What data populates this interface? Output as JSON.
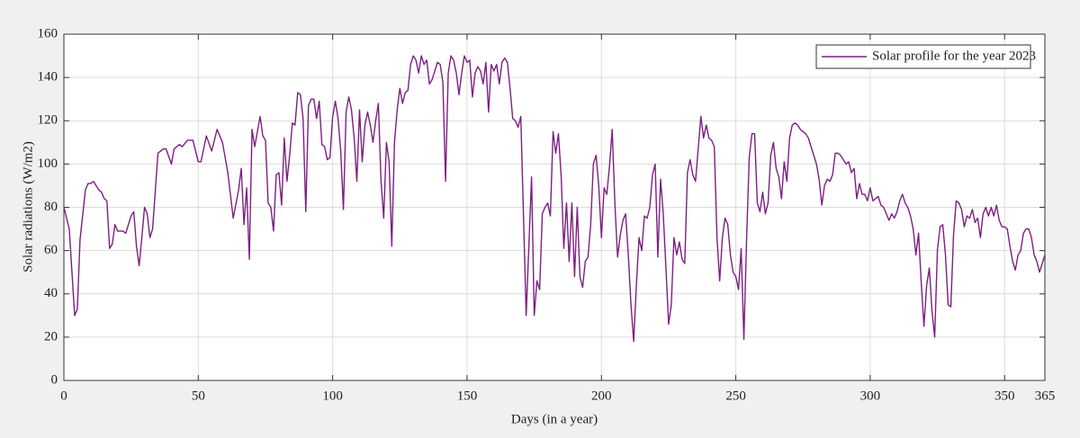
{
  "chart_data": {
    "type": "line",
    "xlabel": "Days (in a year)",
    "ylabel": "Solar radiations (W/m2)",
    "x": [
      0,
      2,
      4,
      5,
      6,
      8,
      9,
      10,
      11,
      13,
      14,
      15,
      16,
      17,
      18,
      19,
      20,
      22,
      23,
      25,
      26,
      27,
      28,
      29,
      30,
      31,
      32,
      33,
      35,
      37,
      38,
      40,
      41,
      43,
      44,
      46,
      48,
      50,
      51,
      53,
      55,
      57,
      59,
      61,
      63,
      65,
      66,
      67,
      68,
      69,
      70,
      71,
      73,
      74,
      75,
      76,
      77,
      78,
      79,
      80,
      81,
      82,
      83,
      84,
      85,
      86,
      87,
      88,
      89,
      90,
      91,
      92,
      93,
      94,
      95,
      96,
      97,
      98,
      99,
      100,
      101,
      102,
      103,
      104,
      105,
      106,
      107,
      108,
      109,
      110,
      111,
      112,
      113,
      114,
      115,
      116,
      117,
      118,
      119,
      120,
      121,
      122,
      123,
      124,
      125,
      126,
      127,
      128,
      129,
      130,
      131,
      132,
      133,
      134,
      135,
      136,
      137,
      138,
      139,
      140,
      141,
      142,
      143,
      144,
      145,
      146,
      147,
      148,
      149,
      150,
      151,
      152,
      153,
      154,
      155,
      156,
      157,
      158,
      159,
      160,
      161,
      162,
      163,
      164,
      165,
      166,
      167,
      168,
      169,
      170,
      172,
      174,
      175,
      176,
      177,
      178,
      179,
      180,
      181,
      182,
      183,
      184,
      185,
      186,
      187,
      188,
      189,
      190,
      191,
      192,
      193,
      194,
      195,
      196,
      197,
      198,
      199,
      200,
      201,
      202,
      203,
      204,
      205,
      206,
      207,
      208,
      209,
      210,
      211,
      212,
      213,
      214,
      215,
      216,
      217,
      218,
      219,
      220,
      221,
      222,
      223,
      224,
      225,
      226,
      227,
      228,
      229,
      230,
      231,
      232,
      233,
      234,
      235,
      236,
      237,
      238,
      239,
      240,
      241,
      242,
      243,
      244,
      245,
      246,
      247,
      248,
      249,
      250,
      251,
      252,
      253,
      254,
      255,
      256,
      257,
      258,
      259,
      260,
      261,
      262,
      263,
      264,
      265,
      266,
      267,
      268,
      269,
      270,
      271,
      272,
      273,
      274,
      275,
      276,
      277,
      278,
      279,
      280,
      281,
      282,
      283,
      284,
      285,
      286,
      287,
      288,
      289,
      290,
      291,
      292,
      293,
      294,
      295,
      296,
      297,
      298,
      299,
      300,
      301,
      302,
      303,
      304,
      305,
      306,
      307,
      308,
      309,
      310,
      311,
      312,
      313,
      314,
      315,
      316,
      317,
      318,
      319,
      320,
      321,
      322,
      323,
      324,
      325,
      326,
      327,
      328,
      329,
      330,
      331,
      332,
      333,
      334,
      335,
      336,
      337,
      338,
      339,
      340,
      341,
      342,
      343,
      344,
      345,
      346,
      347,
      348,
      349,
      350,
      351,
      352,
      353,
      354,
      355,
      356,
      357,
      358,
      359,
      360,
      361,
      362,
      363,
      364,
      365
    ],
    "series": [
      {
        "name": "Solar profile for the year 2023",
        "color": "#7d1f82",
        "values": [
          80,
          70,
          30,
          33,
          65,
          88,
          91,
          91,
          92,
          88,
          87,
          84,
          83,
          61,
          63,
          72,
          69,
          69,
          68,
          76,
          78,
          62,
          53,
          66,
          80,
          77,
          66,
          70,
          105,
          107,
          107,
          100,
          107,
          109,
          108,
          111,
          111,
          101,
          101,
          113,
          106,
          116,
          110,
          96,
          75,
          88,
          98,
          72,
          89,
          56,
          116,
          108,
          122,
          113,
          111,
          82,
          80,
          69,
          95,
          96,
          81,
          112,
          92,
          104,
          119,
          118,
          133,
          132,
          121,
          78,
          127,
          130,
          130,
          121,
          129,
          109,
          108,
          102,
          103,
          122,
          129,
          121,
          106,
          79,
          124,
          131,
          125,
          112,
          92,
          125,
          101,
          118,
          124,
          118,
          110,
          120,
          128,
          92,
          75,
          110,
          101,
          62,
          110,
          125,
          135,
          128,
          133,
          134,
          146,
          150,
          148,
          142,
          150,
          146,
          148,
          137,
          139,
          143,
          147,
          146,
          138,
          92,
          142,
          150,
          148,
          142,
          132,
          142,
          150,
          147,
          148,
          131,
          142,
          145,
          143,
          137,
          147,
          124,
          146,
          143,
          146,
          137,
          147,
          149,
          147,
          135,
          121,
          120,
          117,
          122,
          30,
          94,
          30,
          46,
          42,
          77,
          80,
          82,
          76,
          115,
          105,
          114,
          95,
          61,
          82,
          55,
          82,
          48,
          80,
          48,
          43,
          55,
          57,
          72,
          100,
          104,
          90,
          66,
          89,
          86,
          99,
          116,
          82,
          57,
          67,
          74,
          77,
          58,
          35,
          18,
          44,
          66,
          60,
          76,
          75,
          80,
          95,
          100,
          57,
          93,
          77,
          52,
          26,
          35,
          66,
          58,
          64,
          56,
          54,
          96,
          102,
          95,
          92,
          107,
          122,
          112,
          118,
          112,
          111,
          108,
          66,
          46,
          66,
          75,
          72,
          58,
          50,
          48,
          42,
          61,
          19,
          65,
          103,
          114,
          114,
          82,
          78,
          87,
          77,
          82,
          104,
          110,
          98,
          94,
          84,
          101,
          92,
          112,
          118,
          119,
          118,
          116,
          115,
          114,
          112,
          108,
          104,
          100,
          93,
          81,
          90,
          93,
          92,
          95,
          105,
          105,
          104,
          102,
          100,
          101,
          96,
          98,
          84,
          91,
          86,
          86,
          83,
          89,
          83,
          84,
          85,
          81,
          80,
          77,
          74,
          77,
          75,
          78,
          83,
          86,
          82,
          80,
          76,
          70,
          58,
          68,
          45,
          25,
          44,
          52,
          32,
          20,
          60,
          71,
          72,
          58,
          35,
          34,
          67,
          83,
          82,
          79,
          71,
          76,
          75,
          79,
          73,
          75,
          66,
          77,
          80,
          76,
          80,
          76,
          81,
          74,
          71,
          71,
          70,
          62,
          55,
          51,
          58,
          60,
          68,
          70,
          70,
          66,
          58,
          55,
          50,
          54,
          58
        ]
      }
    ],
    "xlim": [
      0,
      365
    ],
    "xticks": [
      0,
      50,
      100,
      150,
      200,
      250,
      300,
      350,
      365
    ],
    "ylim": [
      0,
      160
    ],
    "yticks": [
      0,
      20,
      40,
      60,
      80,
      100,
      120,
      140,
      160
    ],
    "grid": true,
    "legend": "upper right"
  }
}
